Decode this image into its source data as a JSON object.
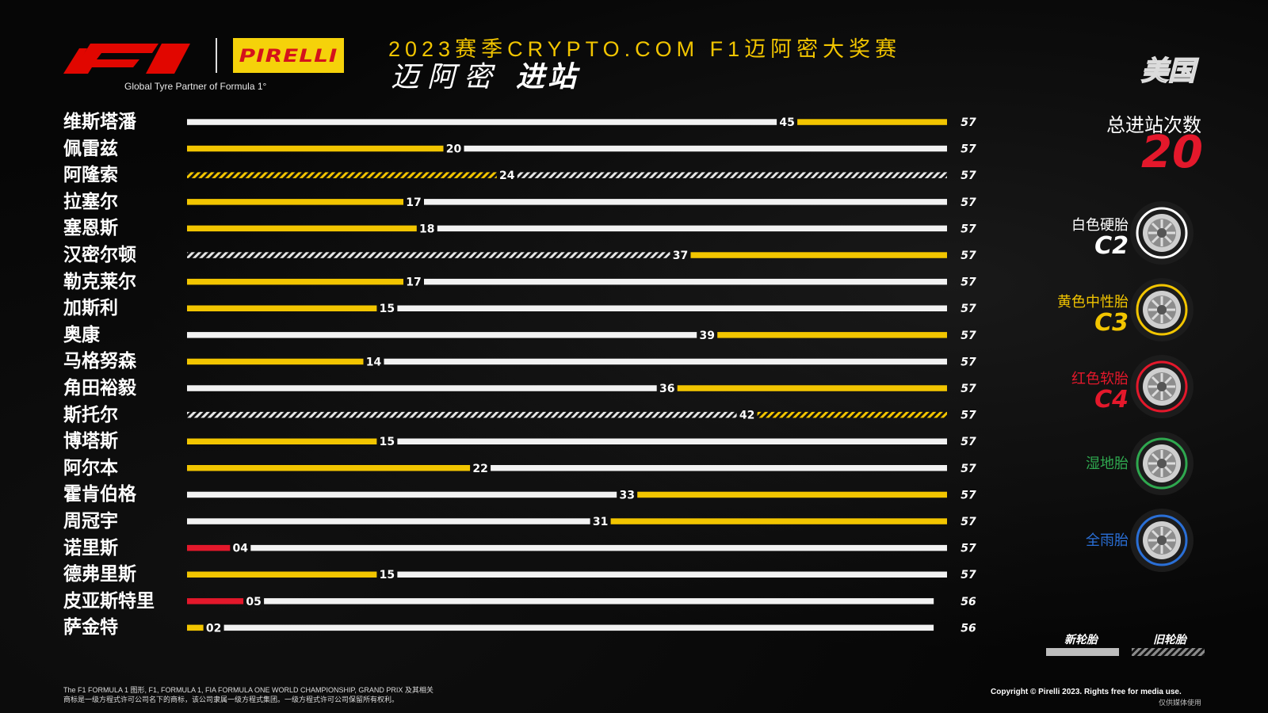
{
  "header": {
    "tagline": "Global Tyre Partner of Formula 1°",
    "pirelli_logo": "PIRELLI",
    "title_line1": "2023赛季CRYPTO.COM F1迈阿密大奖赛",
    "title_line2a": "迈阿密",
    "title_line2b": "进站",
    "country": "美国"
  },
  "summary": {
    "total_label": "总进站次数",
    "total_value": "20"
  },
  "tyres": [
    {
      "label": "白色硬胎",
      "code": "C2",
      "color": "#ffffff",
      "icon": "hard-tyre-icon"
    },
    {
      "label": "黄色中性胎",
      "code": "C3",
      "color": "#f2c500",
      "icon": "medium-tyre-icon"
    },
    {
      "label": "红色软胎",
      "code": "C4",
      "color": "#e4182b",
      "icon": "soft-tyre-icon"
    },
    {
      "label": "湿地胎",
      "code": "",
      "color": "#2fa84f",
      "icon": "intermediate-tyre-icon"
    },
    {
      "label": "全雨胎",
      "code": "",
      "color": "#2a6fd6",
      "icon": "wet-tyre-icon"
    }
  ],
  "legend": {
    "new_label": "新轮胎",
    "old_label": "旧轮胎"
  },
  "footer": {
    "left_line1": "The F1 FORMULA 1 图形, F1, FORMULA 1, FIA FORMULA ONE WORLD CHAMPIONSHIP, GRAND PRIX 及其相关",
    "left_line2": "商标是一级方程式许可公司名下的商标，该公司隶属一级方程式集团。一级方程式许可公司保留所有权利。",
    "right": "Copyright © Pirelli 2023. Rights free for media use.",
    "right2": "仅供媒体使用"
  },
  "colors": {
    "hard": "#ffffff",
    "medium": "#f2c500",
    "soft": "#e4182b",
    "background": "#060606"
  },
  "chart_data": {
    "type": "bar",
    "x_range": [
      0,
      57
    ],
    "drivers": [
      {
        "name": "维斯塔潘",
        "total_laps": "57",
        "stints": [
          {
            "compound": "hard",
            "new": true,
            "end": 45,
            "label": "45"
          },
          {
            "compound": "medium",
            "new": true,
            "end": 57
          }
        ]
      },
      {
        "name": "佩雷兹",
        "total_laps": "57",
        "stints": [
          {
            "compound": "medium",
            "new": true,
            "end": 20,
            "label": "20"
          },
          {
            "compound": "hard",
            "new": true,
            "end": 57
          }
        ]
      },
      {
        "name": "阿隆索",
        "total_laps": "57",
        "stints": [
          {
            "compound": "medium",
            "new": false,
            "end": 24,
            "label": "24"
          },
          {
            "compound": "hard",
            "new": false,
            "end": 57
          }
        ]
      },
      {
        "name": "拉塞尔",
        "total_laps": "57",
        "stints": [
          {
            "compound": "medium",
            "new": true,
            "end": 17,
            "label": "17"
          },
          {
            "compound": "hard",
            "new": true,
            "end": 57
          }
        ]
      },
      {
        "name": "塞恩斯",
        "total_laps": "57",
        "stints": [
          {
            "compound": "medium",
            "new": true,
            "end": 18,
            "label": "18"
          },
          {
            "compound": "hard",
            "new": true,
            "end": 57
          }
        ]
      },
      {
        "name": "汉密尔顿",
        "total_laps": "57",
        "stints": [
          {
            "compound": "hard",
            "new": false,
            "end": 37,
            "label": "37"
          },
          {
            "compound": "medium",
            "new": true,
            "end": 57
          }
        ]
      },
      {
        "name": "勒克莱尔",
        "total_laps": "57",
        "stints": [
          {
            "compound": "medium",
            "new": true,
            "end": 17,
            "label": "17"
          },
          {
            "compound": "hard",
            "new": true,
            "end": 57
          }
        ]
      },
      {
        "name": "加斯利",
        "total_laps": "57",
        "stints": [
          {
            "compound": "medium",
            "new": true,
            "end": 15,
            "label": "15"
          },
          {
            "compound": "hard",
            "new": true,
            "end": 57
          }
        ]
      },
      {
        "name": "奥康",
        "total_laps": "57",
        "stints": [
          {
            "compound": "hard",
            "new": true,
            "end": 39,
            "label": "39"
          },
          {
            "compound": "medium",
            "new": true,
            "end": 57
          }
        ]
      },
      {
        "name": "马格努森",
        "total_laps": "57",
        "stints": [
          {
            "compound": "medium",
            "new": true,
            "end": 14,
            "label": "14"
          },
          {
            "compound": "hard",
            "new": true,
            "end": 57
          }
        ]
      },
      {
        "name": "角田裕毅",
        "total_laps": "57",
        "stints": [
          {
            "compound": "hard",
            "new": true,
            "end": 36,
            "label": "36"
          },
          {
            "compound": "medium",
            "new": true,
            "end": 57
          }
        ]
      },
      {
        "name": "斯托尔",
        "total_laps": "57",
        "stints": [
          {
            "compound": "hard",
            "new": false,
            "end": 42,
            "label": "42"
          },
          {
            "compound": "medium",
            "new": false,
            "end": 57
          }
        ]
      },
      {
        "name": "博塔斯",
        "total_laps": "57",
        "stints": [
          {
            "compound": "medium",
            "new": true,
            "end": 15,
            "label": "15"
          },
          {
            "compound": "hard",
            "new": true,
            "end": 57
          }
        ]
      },
      {
        "name": "阿尔本",
        "total_laps": "57",
        "stints": [
          {
            "compound": "medium",
            "new": true,
            "end": 22,
            "label": "22"
          },
          {
            "compound": "hard",
            "new": true,
            "end": 57
          }
        ]
      },
      {
        "name": "霍肯伯格",
        "total_laps": "57",
        "stints": [
          {
            "compound": "hard",
            "new": true,
            "end": 33,
            "label": "33"
          },
          {
            "compound": "medium",
            "new": true,
            "end": 57
          }
        ]
      },
      {
        "name": "周冠宇",
        "total_laps": "57",
        "stints": [
          {
            "compound": "hard",
            "new": true,
            "end": 31,
            "label": "31"
          },
          {
            "compound": "medium",
            "new": true,
            "end": 57
          }
        ]
      },
      {
        "name": "诺里斯",
        "total_laps": "57",
        "stints": [
          {
            "compound": "soft",
            "new": true,
            "end": 4,
            "label": "04"
          },
          {
            "compound": "hard",
            "new": true,
            "end": 57
          }
        ]
      },
      {
        "name": "德弗里斯",
        "total_laps": "57",
        "stints": [
          {
            "compound": "medium",
            "new": true,
            "end": 15,
            "label": "15"
          },
          {
            "compound": "hard",
            "new": true,
            "end": 57
          }
        ]
      },
      {
        "name": "皮亚斯特里",
        "total_laps": "56",
        "stints": [
          {
            "compound": "soft",
            "new": true,
            "end": 5,
            "label": "05"
          },
          {
            "compound": "hard",
            "new": true,
            "end": 56
          }
        ]
      },
      {
        "name": "萨金特",
        "total_laps": "56",
        "stints": [
          {
            "compound": "medium",
            "new": true,
            "end": 2,
            "label": "02"
          },
          {
            "compound": "hard",
            "new": true,
            "end": 56
          }
        ]
      }
    ]
  }
}
